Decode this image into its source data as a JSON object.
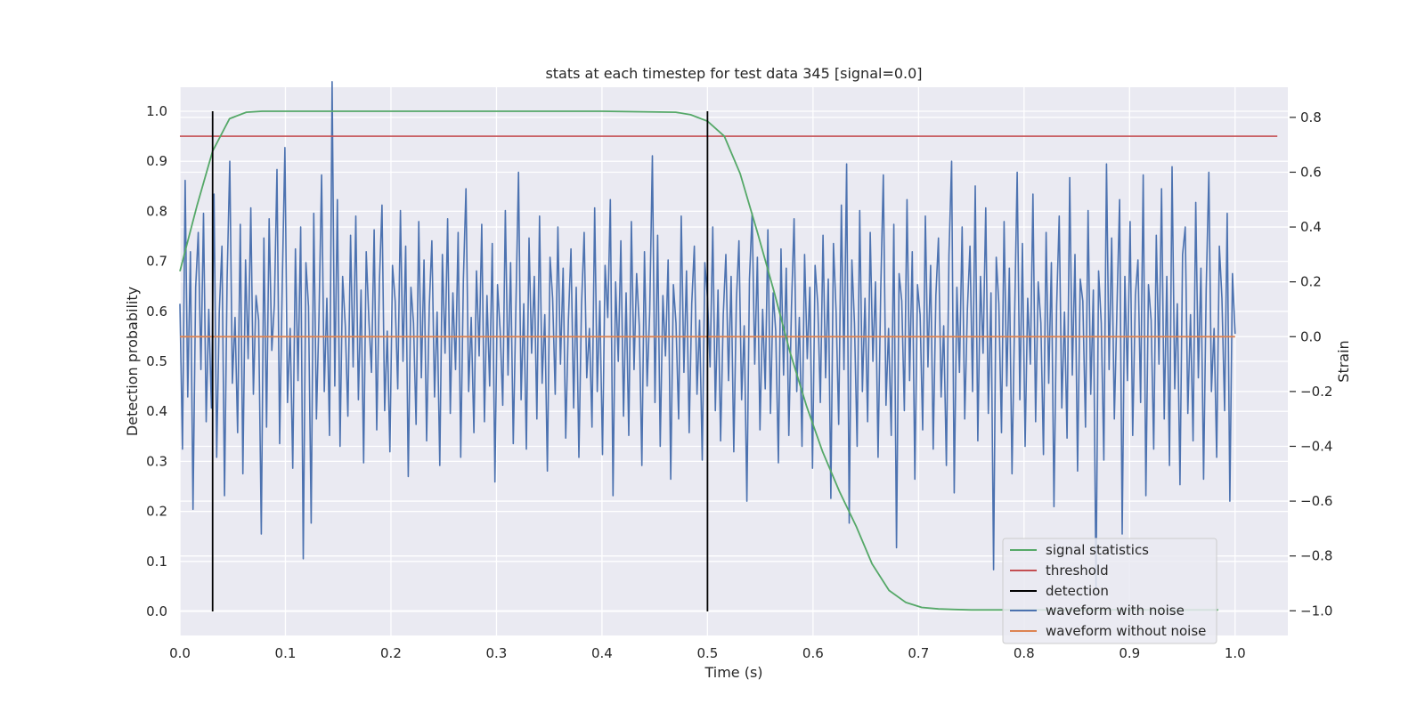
{
  "chart_data": {
    "type": "line",
    "title": "stats at each timestep for test data 345 [signal=0.0]",
    "xlabel": "Time (s)",
    "ylabel_left": "Detection probability",
    "ylabel_right": "Strain",
    "xlim": [
      0.0,
      1.05
    ],
    "ylim_left": [
      -0.048,
      1.048
    ],
    "ylim_right": [
      -1.09,
      0.91
    ],
    "xticks": [
      0.0,
      0.1,
      0.2,
      0.3,
      0.4,
      0.5,
      0.6,
      0.7,
      0.8,
      0.9,
      1.0
    ],
    "xtick_labels": [
      "0.0",
      "0.1",
      "0.2",
      "0.3",
      "0.4",
      "0.5",
      "0.6",
      "0.7",
      "0.8",
      "0.9",
      "1.0"
    ],
    "yticks_left": [
      0.0,
      0.1,
      0.2,
      0.3,
      0.4,
      0.5,
      0.6,
      0.7,
      0.8,
      0.9,
      1.0
    ],
    "ytick_labels_left": [
      "0.0",
      "0.1",
      "0.2",
      "0.3",
      "0.4",
      "0.5",
      "0.6",
      "0.7",
      "0.8",
      "0.9",
      "1.0"
    ],
    "yticks_right": [
      -1.0,
      -0.8,
      -0.6,
      -0.4,
      -0.2,
      0.0,
      0.2,
      0.4,
      0.6,
      0.8
    ],
    "ytick_labels_right": [
      "−1.0",
      "−0.8",
      "−0.6",
      "−0.4",
      "−0.2",
      "0.0",
      "0.2",
      "0.4",
      "0.6",
      "0.8"
    ],
    "grid": true,
    "legend_position": "lower-right",
    "series": [
      {
        "name": "signal statistics",
        "axis": "left",
        "color": "#55a868",
        "x": [
          0.0,
          0.016,
          0.031,
          0.047,
          0.063,
          0.078,
          0.094,
          0.109,
          0.2,
          0.3,
          0.4,
          0.47,
          0.484,
          0.5,
          0.516,
          0.531,
          0.547,
          0.563,
          0.578,
          0.594,
          0.609,
          0.625,
          0.641,
          0.656,
          0.672,
          0.688,
          0.703,
          0.719,
          0.734,
          0.75,
          0.8,
          0.9,
          0.984
        ],
        "y": [
          0.68,
          0.81,
          0.92,
          0.985,
          0.998,
          1.0,
          1.0,
          1.0,
          1.0,
          1.0,
          1.0,
          0.998,
          0.993,
          0.98,
          0.95,
          0.875,
          0.76,
          0.64,
          0.52,
          0.41,
          0.32,
          0.24,
          0.17,
          0.095,
          0.042,
          0.018,
          0.008,
          0.005,
          0.004,
          0.003,
          0.003,
          0.003,
          0.003
        ]
      },
      {
        "name": "threshold",
        "axis": "left",
        "color": "#c44e52",
        "x": [
          0.0,
          1.04
        ],
        "y": [
          0.95,
          0.95
        ]
      },
      {
        "name": "detection",
        "axis": "left",
        "color": "#000000",
        "events_x": [
          0.031,
          0.5
        ],
        "y_range": [
          0.0,
          1.0
        ]
      },
      {
        "name": "waveform with noise",
        "axis": "right",
        "color": "#4c72b0",
        "x_range": [
          0.0,
          1.0
        ],
        "y": [
          0.12,
          -0.41,
          0.57,
          -0.22,
          0.31,
          -0.63,
          0.18,
          0.38,
          -0.12,
          0.45,
          -0.31,
          0.1,
          -0.26,
          0.52,
          -0.44,
          0.09,
          0.33,
          -0.58,
          0.21,
          0.64,
          -0.17,
          0.07,
          -0.35,
          0.41,
          -0.5,
          0.28,
          -0.08,
          0.47,
          -0.21,
          0.15,
          0.06,
          -0.72,
          0.36,
          -0.33,
          0.43,
          -0.05,
          0.12,
          0.61,
          -0.39,
          0.19,
          0.69,
          -0.24,
          0.03,
          -0.48,
          0.32,
          -0.16,
          0.4,
          -0.81,
          0.27,
          0.11,
          -0.68,
          0.45,
          -0.3,
          0.08,
          0.59,
          -0.2,
          0.14,
          -0.36,
          0.93,
          -0.18,
          0.5,
          -0.4,
          0.22,
          0.04,
          -0.29,
          0.37,
          -0.11,
          0.44,
          -0.23,
          0.17,
          -0.46,
          0.31,
          0.06,
          -0.13,
          0.39,
          -0.34,
          0.2,
          0.48,
          -0.27,
          0.02,
          -0.42,
          0.26,
          0.13,
          -0.19,
          0.46,
          -0.09,
          0.33,
          -0.51,
          0.18,
          0.05,
          -0.32,
          0.42,
          -0.15,
          0.28,
          -0.38,
          0.11,
          0.35,
          -0.22,
          0.09,
          -0.47,
          0.3,
          -0.06,
          0.43,
          -0.28,
          0.16,
          -0.12,
          0.38,
          -0.44,
          0.21,
          0.54,
          -0.2,
          0.07,
          -0.35,
          0.24,
          -0.07,
          0.41,
          -0.31,
          0.15,
          -0.18,
          0.34,
          -0.53,
          0.19,
          0.02,
          -0.25,
          0.46,
          -0.14,
          0.27,
          -0.39,
          0.1,
          0.6,
          -0.23,
          0.12,
          -0.41,
          0.36,
          -0.06,
          0.22,
          -0.3,
          0.44,
          -0.17,
          0.08,
          -0.49,
          0.29,
          0.14,
          -0.21,
          0.4,
          -0.1,
          0.25,
          -0.37,
          0.06,
          0.32,
          -0.26,
          0.18,
          -0.44,
          0.11,
          0.38,
          -0.15,
          0.03,
          -0.33,
          0.47,
          -0.2,
          0.13,
          -0.43,
          0.26,
          0.07,
          0.5,
          -0.58,
          0.2,
          -0.09,
          0.35,
          -0.29,
          0.16,
          -0.36,
          0.42,
          -0.12,
          0.23,
          0.04,
          -0.47,
          0.31,
          -0.18,
          0.09,
          0.66,
          -0.24,
          0.37,
          -0.4,
          0.15,
          -0.07,
          0.28,
          -0.52,
          0.19,
          0.05,
          -0.3,
          0.44,
          -0.13,
          0.24,
          -0.35,
          0.12,
          0.33,
          -0.21,
          0.06,
          -0.45,
          0.27,
          0.14,
          -0.11,
          0.4,
          -0.27,
          0.17,
          -0.38,
          0.08,
          0.3,
          -0.16,
          0.22,
          -0.42,
          0.13,
          0.35,
          -0.23,
          0.04,
          -0.6,
          0.21,
          0.45,
          -0.1,
          0.29,
          -0.34,
          0.1,
          -0.19,
          0.39,
          -0.28,
          0.16,
          0.02,
          -0.46,
          0.32,
          -0.14,
          0.25,
          -0.36,
          0.11,
          0.43,
          -0.2,
          0.07,
          -0.4,
          0.3,
          -0.08,
          0.18,
          -0.48,
          0.26,
          0.12,
          -0.24,
          0.37,
          -0.15,
          0.21,
          -0.59,
          0.34,
          0.09,
          -0.32,
          0.48,
          -0.12,
          0.63,
          -0.68,
          0.28,
          0.05,
          -0.4,
          0.46,
          -0.2,
          0.14,
          -0.31,
          0.38,
          -0.09,
          0.2,
          -0.44,
          0.17,
          0.59,
          -0.25,
          0.03,
          -0.36,
          0.41,
          -0.77,
          0.23,
          0.13,
          -0.27,
          0.5,
          -0.16,
          0.31,
          -0.52,
          0.19,
          0.08,
          -0.34,
          0.44,
          -0.11,
          0.26,
          -0.41,
          0.15,
          0.36,
          -0.22,
          0.04,
          -0.47,
          0.3,
          0.64,
          -0.57,
          0.18,
          -0.13,
          0.4,
          -0.3,
          0.1,
          0.33,
          -0.2,
          0.55,
          -0.38,
          0.22,
          -0.06,
          0.47,
          -0.28,
          0.16,
          -0.85,
          0.29,
          0.12,
          -0.35,
          0.42,
          -0.18,
          0.25,
          -0.5,
          0.07,
          0.6,
          -0.23,
          0.34,
          -0.4,
          0.14,
          -0.1,
          0.52,
          -0.31,
          0.2,
          0.05,
          -0.43,
          0.38,
          -0.17,
          0.27,
          -0.62,
          0.11,
          0.44,
          -0.26,
          0.09,
          -0.37,
          0.58,
          -0.14,
          0.3,
          -0.49,
          0.21,
          0.13,
          -0.33,
          0.46,
          -0.21,
          0.17,
          -0.92,
          0.24,
          0.05,
          -0.45,
          0.63,
          -0.12,
          0.36,
          -0.3,
          0.1,
          0.5,
          -0.72,
          0.22,
          -0.16,
          0.42,
          -0.36,
          0.15,
          0.28,
          -0.24,
          0.59,
          -0.58,
          0.19,
          0.06,
          -0.41,
          0.37,
          -0.1,
          0.54,
          -0.3,
          0.22,
          -0.47,
          0.62,
          -0.19,
          0.12,
          -0.54,
          0.3,
          0.4,
          -0.28,
          0.08,
          -0.38,
          0.49,
          -0.15,
          0.25,
          -0.52,
          0.17,
          0.6,
          -0.2,
          0.03,
          -0.44,
          0.33,
          0.14,
          -0.27,
          0.45,
          -0.6,
          0.23,
          0.01
        ]
      },
      {
        "name": "waveform without noise",
        "axis": "right",
        "color": "#dd8452",
        "x": [
          0.0,
          1.0
        ],
        "y": [
          0.0,
          0.0
        ]
      }
    ]
  }
}
